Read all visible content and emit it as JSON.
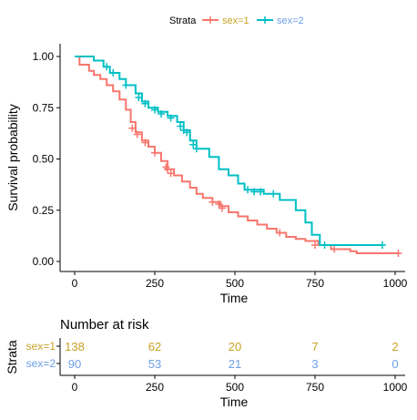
{
  "chart_data": [
    {
      "type": "line",
      "subtype": "kaplan-meier survival curve",
      "xlabel": "Time",
      "ylabel": "Survival probability",
      "xlim": [
        0,
        1000
      ],
      "ylim": [
        0,
        1
      ],
      "x_ticks": [
        "0",
        "250",
        "500",
        "750",
        "1000"
      ],
      "y_ticks": [
        "0.00",
        "0.25",
        "0.50",
        "0.75",
        "1.00"
      ],
      "grid": false,
      "legend": {
        "title": "Strata",
        "placement": "top"
      },
      "series": [
        {
          "name": "sex=1",
          "color": "#F8766D",
          "steps": [
            [
              0,
              1.0
            ],
            [
              15,
              0.96
            ],
            [
              45,
              0.93
            ],
            [
              60,
              0.91
            ],
            [
              80,
              0.89
            ],
            [
              100,
              0.86
            ],
            [
              120,
              0.83
            ],
            [
              140,
              0.79
            ],
            [
              160,
              0.74
            ],
            [
              175,
              0.68
            ],
            [
              190,
              0.63
            ],
            [
              210,
              0.59
            ],
            [
              230,
              0.56
            ],
            [
              250,
              0.53
            ],
            [
              270,
              0.49
            ],
            [
              290,
              0.45
            ],
            [
              310,
              0.42
            ],
            [
              335,
              0.39
            ],
            [
              360,
              0.36
            ],
            [
              380,
              0.33
            ],
            [
              400,
              0.31
            ],
            [
              430,
              0.29
            ],
            [
              455,
              0.27
            ],
            [
              480,
              0.24
            ],
            [
              510,
              0.22
            ],
            [
              540,
              0.2
            ],
            [
              570,
              0.18
            ],
            [
              600,
              0.16
            ],
            [
              630,
              0.14
            ],
            [
              660,
              0.12
            ],
            [
              690,
              0.11
            ],
            [
              720,
              0.1
            ],
            [
              760,
              0.08
            ],
            [
              800,
              0.06
            ],
            [
              860,
              0.05
            ],
            [
              880,
              0.04
            ],
            [
              1010,
              0.04
            ]
          ],
          "censored": [
            [
              180,
              0.65
            ],
            [
              195,
              0.62
            ],
            [
              220,
              0.58
            ],
            [
              250,
              0.53
            ],
            [
              285,
              0.46
            ],
            [
              290,
              0.45
            ],
            [
              300,
              0.43
            ],
            [
              430,
              0.29
            ],
            [
              450,
              0.28
            ],
            [
              460,
              0.26
            ],
            [
              640,
              0.14
            ],
            [
              750,
              0.08
            ],
            [
              810,
              0.06
            ],
            [
              1010,
              0.04
            ]
          ]
        },
        {
          "name": "sex=2",
          "color": "#00BFC4",
          "steps": [
            [
              0,
              1.0
            ],
            [
              60,
              0.98
            ],
            [
              90,
              0.95
            ],
            [
              110,
              0.92
            ],
            [
              140,
              0.89
            ],
            [
              160,
              0.86
            ],
            [
              190,
              0.82
            ],
            [
              210,
              0.78
            ],
            [
              230,
              0.75
            ],
            [
              260,
              0.73
            ],
            [
              290,
              0.71
            ],
            [
              320,
              0.68
            ],
            [
              340,
              0.64
            ],
            [
              360,
              0.59
            ],
            [
              380,
              0.55
            ],
            [
              420,
              0.51
            ],
            [
              450,
              0.45
            ],
            [
              480,
              0.42
            ],
            [
              510,
              0.38
            ],
            [
              530,
              0.35
            ],
            [
              590,
              0.33
            ],
            [
              640,
              0.3
            ],
            [
              690,
              0.25
            ],
            [
              720,
              0.19
            ],
            [
              740,
              0.13
            ],
            [
              765,
              0.08
            ],
            [
              960,
              0.08
            ]
          ],
          "censored": [
            [
              100,
              0.95
            ],
            [
              120,
              0.92
            ],
            [
              160,
              0.86
            ],
            [
              200,
              0.8
            ],
            [
              220,
              0.77
            ],
            [
              250,
              0.74
            ],
            [
              270,
              0.72
            ],
            [
              300,
              0.7
            ],
            [
              330,
              0.66
            ],
            [
              340,
              0.64
            ],
            [
              350,
              0.63
            ],
            [
              370,
              0.57
            ],
            [
              380,
              0.55
            ],
            [
              540,
              0.35
            ],
            [
              560,
              0.34
            ],
            [
              580,
              0.34
            ],
            [
              620,
              0.33
            ],
            [
              780,
              0.08
            ],
            [
              960,
              0.08
            ]
          ]
        }
      ]
    },
    {
      "type": "table",
      "title": "Number at risk",
      "ylabel": "Strata",
      "xlabel": "Time",
      "x": [
        0,
        250,
        500,
        750,
        1000
      ],
      "x_ticks": [
        "0",
        "250",
        "500",
        "750",
        "1000"
      ],
      "rows": [
        {
          "name": "sex=1",
          "color": "#C9A227",
          "values": [
            "138",
            "62",
            "20",
            "7",
            "2"
          ]
        },
        {
          "name": "sex=2",
          "color": "#6C9FE8",
          "values": [
            "90",
            "53",
            "21",
            "3",
            "0"
          ]
        }
      ]
    }
  ]
}
